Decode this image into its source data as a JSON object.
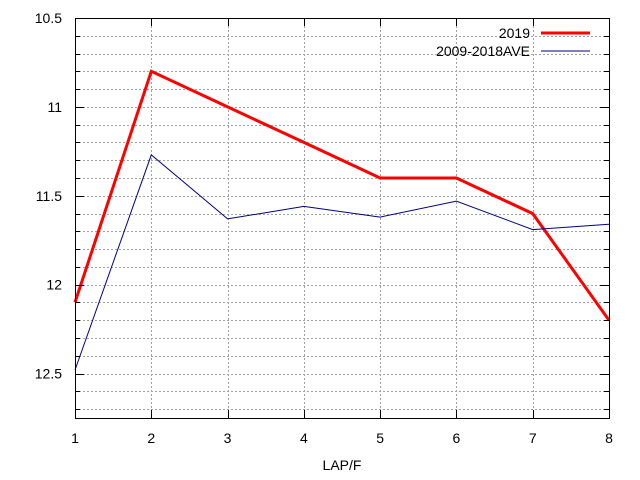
{
  "chart_data": {
    "type": "line",
    "xlabel": "LAP/F",
    "ylabel": "",
    "x": [
      1,
      2,
      3,
      4,
      5,
      6,
      7,
      8
    ],
    "xticks": [
      "1",
      "2",
      "3",
      "4",
      "5",
      "6",
      "7",
      "8"
    ],
    "xlim": [
      1,
      8
    ],
    "ylim": [
      10.5,
      12.75
    ],
    "y_inverted": true,
    "yticks": [
      "10.5",
      "11",
      "11.5",
      "12",
      "12.5"
    ],
    "ytick_values": [
      10.5,
      11,
      11.5,
      12,
      12.5
    ],
    "y_minor_step": 0.1,
    "grid": true,
    "legend_position": "top-right",
    "series": [
      {
        "name": "2019",
        "color": "#ff0000",
        "values": [
          12.1,
          10.8,
          11.0,
          11.2,
          11.4,
          11.4,
          11.6,
          12.2
        ]
      },
      {
        "name": "2009-2018AVE",
        "color": "#000080",
        "values": [
          12.48,
          11.27,
          11.63,
          11.56,
          11.62,
          11.53,
          11.69,
          11.66
        ]
      }
    ]
  }
}
